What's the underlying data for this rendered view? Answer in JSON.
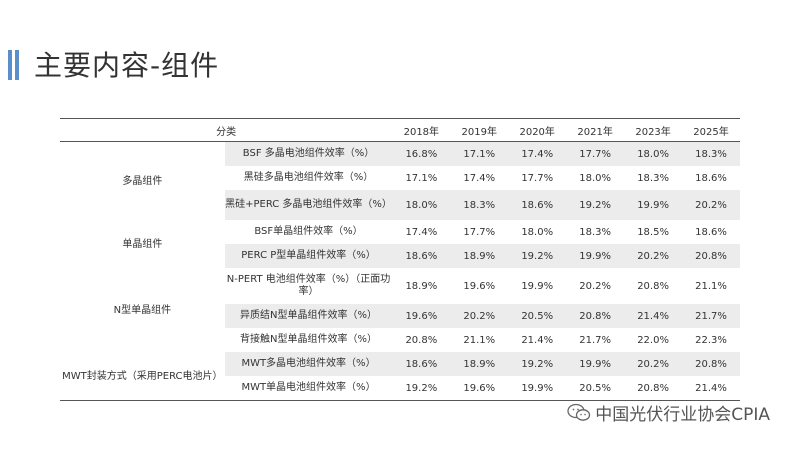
{
  "title": "主要内容-组件",
  "table": {
    "header": [
      "分类",
      "2018年",
      "2019年",
      "2020年",
      "2021年",
      "2023年",
      "2025年"
    ],
    "groups": {
      "multi": "多晶组件",
      "mono": "单晶组件",
      "ntype": "N型单晶组件",
      "mwt": "MWT封装方式（采用PERC电池片）"
    },
    "rows": [
      {
        "item": "BSF 多晶电池组件效率（%）",
        "values": [
          "16.8%",
          "17.1%",
          "17.4%",
          "17.7%",
          "18.0%",
          "18.3%"
        ]
      },
      {
        "item": "黑硅多晶电池组件效率（%）",
        "values": [
          "17.1%",
          "17.4%",
          "17.7%",
          "18.0%",
          "18.3%",
          "18.6%"
        ]
      },
      {
        "item": "黑硅+PERC 多晶电池组件效率（%）",
        "values": [
          "18.0%",
          "18.3%",
          "18.6%",
          "19.2%",
          "19.9%",
          "20.2%"
        ]
      },
      {
        "item": "BSF单晶组件效率（%）",
        "values": [
          "17.4%",
          "17.7%",
          "18.0%",
          "18.3%",
          "18.5%",
          "18.6%"
        ]
      },
      {
        "item": "PERC P型单晶组件效率（%）",
        "values": [
          "18.6%",
          "18.9%",
          "19.2%",
          "19.9%",
          "20.2%",
          "20.8%"
        ]
      },
      {
        "item": "N-PERT 电池组件效率（%）（正面功率）",
        "values": [
          "18.9%",
          "19.6%",
          "19.9%",
          "20.2%",
          "20.8%",
          "21.1%"
        ]
      },
      {
        "item": "异质结N型单晶组件效率（%）",
        "values": [
          "19.6%",
          "20.2%",
          "20.5%",
          "20.8%",
          "21.4%",
          "21.7%"
        ]
      },
      {
        "item": "背接触N型单晶组件效率（%）",
        "values": [
          "20.8%",
          "21.1%",
          "21.4%",
          "21.7%",
          "22.0%",
          "22.3%"
        ]
      },
      {
        "item": "MWT多晶电池组件效率（%）",
        "values": [
          "18.6%",
          "18.9%",
          "19.2%",
          "19.9%",
          "20.2%",
          "20.8%"
        ]
      },
      {
        "item": "MWT单晶电池组件效率（%）",
        "values": [
          "19.2%",
          "19.6%",
          "19.9%",
          "20.5%",
          "20.8%",
          "21.4%"
        ]
      }
    ]
  },
  "watermark": {
    "text": "中国光伏行业协会CPIA",
    "icon": "wechat-icon"
  },
  "colors": {
    "accent": "#5b8fc9",
    "shade": "#ececec"
  }
}
